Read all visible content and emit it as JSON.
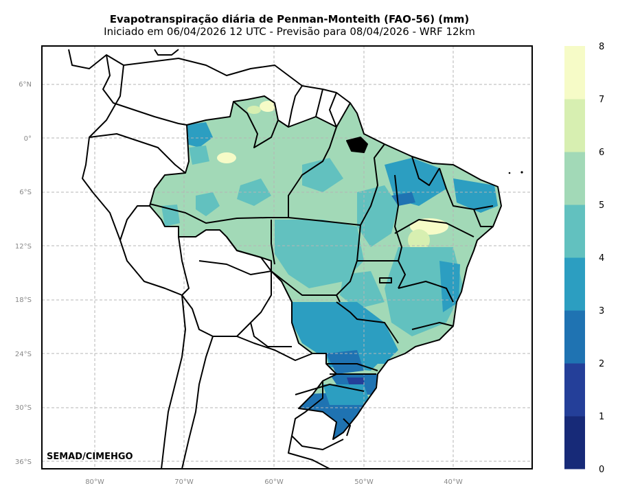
{
  "title": "Evapotranspiração diária de Penman-Monteith (FAO-56) (mm)",
  "subtitle": "Iniciado em 06/04/2026 12 UTC - Previsão para 08/04/2026 - WRF 12km",
  "credit": "SEMAD/CIMEHGO",
  "lat_labels": [
    "6°N",
    "0°",
    "6°S",
    "12°S",
    "18°S",
    "24°S",
    "30°S",
    "36°S"
  ],
  "lon_labels": [
    "80°W",
    "70°W",
    "60°W",
    "50°W",
    "40°W"
  ],
  "colorbar": {
    "labels": [
      "0",
      "1",
      "2",
      "3",
      "4",
      "5",
      "6",
      "7",
      "8"
    ],
    "colors": [
      "#172a78",
      "#243f99",
      "#1f73b2",
      "#2c9ec1",
      "#62c1bf",
      "#a2d9b7",
      "#d7efb1",
      "#f6fbc7"
    ]
  }
}
